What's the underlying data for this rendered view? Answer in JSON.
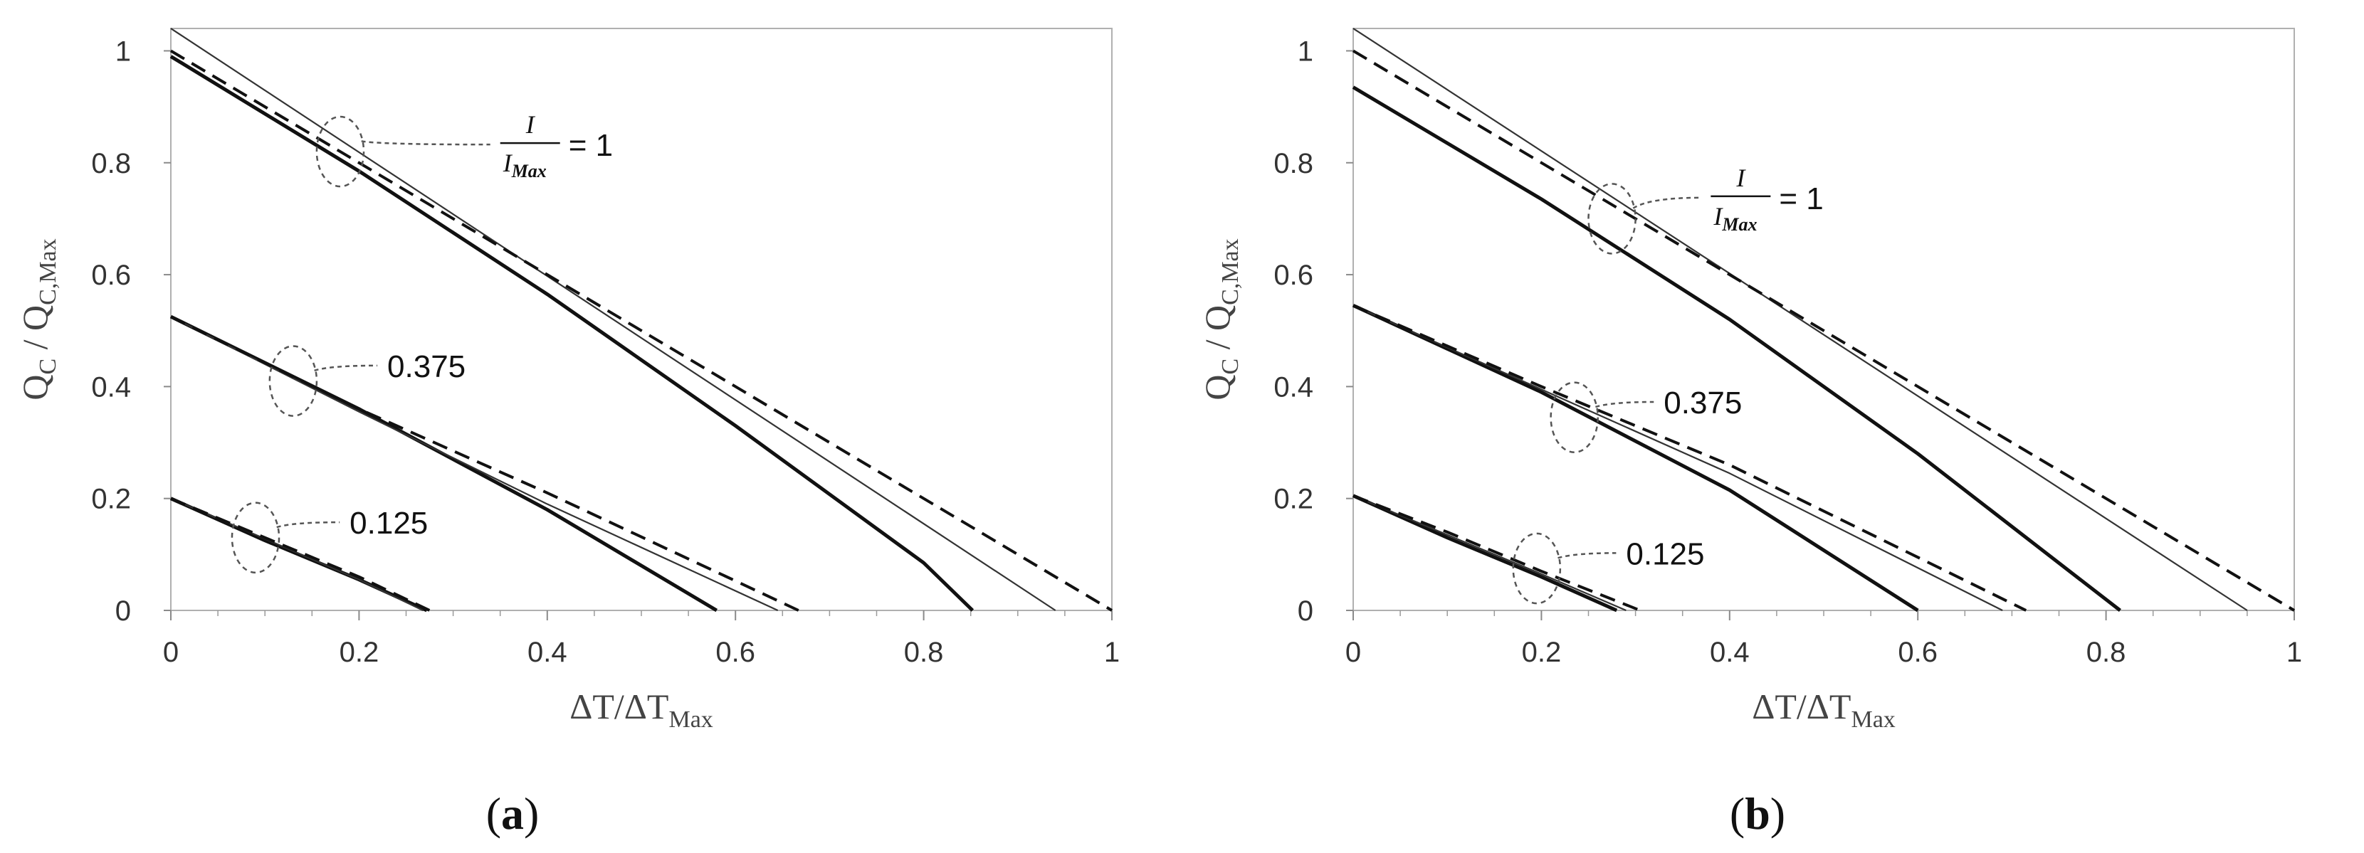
{
  "chart_data": [
    {
      "type": "line",
      "caption": "(a)",
      "caption_letter": "a",
      "xlabel": "ΔT/ΔT",
      "xlabel_sub": "Max",
      "ylabel": "Q",
      "ylabel_sub": "C",
      "ylabel_mid": " / Q",
      "ylabel_sub2": "C,Max",
      "xlim": [
        0,
        1
      ],
      "ylim": [
        0,
        1.04
      ],
      "xticks": [
        "0",
        "0.2",
        "0.4",
        "0.6",
        "0.8",
        "1"
      ],
      "yticks": [
        "0",
        "0.2",
        "0.4",
        "0.6",
        "0.8",
        "1"
      ],
      "grid": false,
      "series": [
        {
          "style": "thick",
          "x": [
            0,
            0.2,
            0.4,
            0.6,
            0.8,
            0.852
          ],
          "y": [
            0.99,
            0.785,
            0.565,
            0.33,
            0.085,
            0
          ]
        },
        {
          "style": "thin",
          "x": [
            0,
            0.94
          ],
          "y": [
            1.04,
            0
          ]
        },
        {
          "style": "dashed",
          "x": [
            0,
            1.0
          ],
          "y": [
            1.0,
            0
          ]
        },
        {
          "style": "thick",
          "x": [
            0,
            0.2,
            0.4,
            0.58
          ],
          "y": [
            0.525,
            0.36,
            0.18,
            0
          ]
        },
        {
          "style": "thin",
          "x": [
            0,
            0.2,
            0.4,
            0.645
          ],
          "y": [
            0.525,
            0.355,
            0.19,
            0
          ]
        },
        {
          "style": "dashed",
          "x": [
            0,
            0.2,
            0.4,
            0.667
          ],
          "y": [
            0.525,
            0.36,
            0.21,
            0
          ]
        },
        {
          "style": "thick",
          "x": [
            0,
            0.1,
            0.2,
            0.272
          ],
          "y": [
            0.2,
            0.125,
            0.055,
            0
          ]
        },
        {
          "style": "thin",
          "x": [
            0,
            0.1,
            0.2,
            0.268
          ],
          "y": [
            0.2,
            0.128,
            0.055,
            0
          ]
        },
        {
          "style": "dashed",
          "x": [
            0,
            0.1,
            0.2,
            0.275
          ],
          "y": [
            0.2,
            0.13,
            0.06,
            0
          ]
        }
      ],
      "annotations": [
        {
          "label": "fraction",
          "ell": [
            0.18,
            0.82
          ],
          "text": [
            0.35,
            0.83
          ],
          "erx": 0.025,
          "ery": 0.06
        },
        {
          "label": "0.375",
          "ell": [
            0.13,
            0.41
          ],
          "text": [
            0.23,
            0.435
          ],
          "erx": 0.025,
          "ery": 0.06
        },
        {
          "label": "0.125",
          "ell": [
            0.09,
            0.13
          ],
          "text": [
            0.19,
            0.155
          ],
          "erx": 0.025,
          "ery": 0.06
        }
      ],
      "fraction": {
        "num": "I",
        "den": "I",
        "den_sub": "Max",
        "eq": "= 1"
      }
    },
    {
      "type": "line",
      "caption": "(b)",
      "caption_letter": "b",
      "xlabel": "ΔT/ΔT",
      "xlabel_sub": "Max",
      "ylabel": "Q",
      "ylabel_sub": "C",
      "ylabel_mid": " / Q",
      "ylabel_sub2": "C,Max",
      "xlim": [
        0,
        1
      ],
      "ylim": [
        0,
        1.04
      ],
      "xticks": [
        "0",
        "0.2",
        "0.4",
        "0.6",
        "0.8",
        "1"
      ],
      "yticks": [
        "0",
        "0.2",
        "0.4",
        "0.6",
        "0.8",
        "1"
      ],
      "grid": false,
      "series": [
        {
          "style": "thick",
          "x": [
            0,
            0.2,
            0.4,
            0.6,
            0.815
          ],
          "y": [
            0.935,
            0.735,
            0.52,
            0.28,
            0
          ]
        },
        {
          "style": "thin",
          "x": [
            0,
            0.95
          ],
          "y": [
            1.04,
            0
          ]
        },
        {
          "style": "dashed",
          "x": [
            0,
            1.0
          ],
          "y": [
            1.0,
            0
          ]
        },
        {
          "style": "thick",
          "x": [
            0,
            0.2,
            0.4,
            0.6
          ],
          "y": [
            0.545,
            0.39,
            0.215,
            0
          ]
        },
        {
          "style": "thin",
          "x": [
            0,
            0.2,
            0.4,
            0.69
          ],
          "y": [
            0.545,
            0.395,
            0.245,
            0
          ]
        },
        {
          "style": "dashed",
          "x": [
            0,
            0.2,
            0.4,
            0.715
          ],
          "y": [
            0.545,
            0.4,
            0.26,
            0
          ]
        },
        {
          "style": "thick",
          "x": [
            0,
            0.1,
            0.2,
            0.28
          ],
          "y": [
            0.205,
            0.13,
            0.06,
            0
          ]
        },
        {
          "style": "thin",
          "x": [
            0,
            0.1,
            0.2,
            0.29
          ],
          "y": [
            0.205,
            0.135,
            0.065,
            0
          ]
        },
        {
          "style": "dashed",
          "x": [
            0,
            0.1,
            0.2,
            0.305
          ],
          "y": [
            0.205,
            0.14,
            0.07,
            0
          ]
        }
      ],
      "annotations": [
        {
          "label": "fraction",
          "ell": [
            0.275,
            0.7
          ],
          "text": [
            0.38,
            0.735
          ],
          "erx": 0.025,
          "ery": 0.06
        },
        {
          "label": "0.375",
          "ell": [
            0.235,
            0.345
          ],
          "text": [
            0.33,
            0.37
          ],
          "erx": 0.025,
          "ery": 0.06
        },
        {
          "label": "0.125",
          "ell": [
            0.195,
            0.075
          ],
          "text": [
            0.29,
            0.1
          ],
          "erx": 0.025,
          "ery": 0.06
        }
      ],
      "fraction": {
        "num": "I",
        "den": "I",
        "den_sub": "Max",
        "eq": "= 1"
      }
    }
  ]
}
